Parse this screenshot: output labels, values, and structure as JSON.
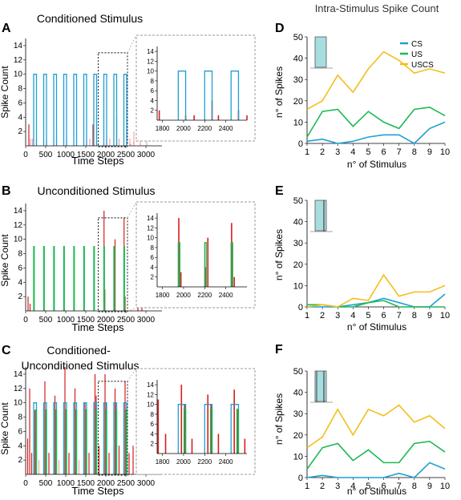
{
  "colors": {
    "cs": "#1fa0d2",
    "us": "#1db954",
    "uscs": "#f4be1a",
    "spike_dark": "#d61e1e",
    "spike_light": "#f4a6a6",
    "cs_shade": "#a8dde0",
    "axis": "#000000",
    "inset_border": "#9a9a9a"
  },
  "right_title": "Intra-Stimulus Spike Count",
  "chart_data": [
    {
      "id": "A",
      "panel_letter": "A",
      "type": "bar",
      "title": "Conditioned Stimulus",
      "xlabel": "Time Steps",
      "ylabel": "Spike Count",
      "xlim": [
        0,
        3400
      ],
      "ylim": [
        0,
        15
      ],
      "xticks": [
        0,
        500,
        1000,
        1500,
        2000,
        2500,
        3000
      ],
      "yticks": [
        2,
        4,
        6,
        8,
        10,
        12,
        14
      ],
      "stimulus_onsets": [
        200,
        450,
        700,
        950,
        1200,
        1450,
        1700,
        1950,
        2200,
        2450
      ],
      "stimulus_duration": 70,
      "cs_level": 10,
      "us_level": null,
      "spikes": [
        [
          80,
          3
        ],
        [
          120,
          1
        ],
        [
          170,
          1
        ],
        [
          270,
          1
        ],
        [
          520,
          1
        ],
        [
          770,
          2
        ],
        [
          1020,
          1
        ],
        [
          1270,
          2
        ],
        [
          1520,
          1
        ],
        [
          1600,
          1
        ],
        [
          1680,
          3
        ],
        [
          1770,
          2
        ],
        [
          2020,
          1
        ],
        [
          2100,
          1
        ],
        [
          2270,
          4
        ],
        [
          2330,
          1
        ],
        [
          2520,
          2
        ],
        [
          2600,
          1
        ],
        [
          2700,
          2
        ],
        [
          2860,
          1
        ],
        [
          3020,
          1
        ]
      ],
      "inset": {
        "xlim": [
          1750,
          2600
        ],
        "ylim": [
          0,
          15
        ],
        "xticks": [
          1800,
          2000,
          2200,
          2400
        ],
        "yticks": [
          2,
          4,
          6,
          8,
          10,
          12,
          14
        ]
      }
    },
    {
      "id": "B",
      "panel_letter": "B",
      "type": "bar",
      "title": "Unconditioned Stimulus",
      "xlabel": "Time Steps",
      "ylabel": "Spike Count",
      "xlim": [
        0,
        3400
      ],
      "ylim": [
        0,
        15
      ],
      "xticks": [
        0,
        500,
        1000,
        1500,
        2000,
        2500,
        3000
      ],
      "yticks": [
        2,
        4,
        6,
        8,
        10,
        12,
        14
      ],
      "stimulus_onsets": [
        200,
        450,
        700,
        950,
        1200,
        1450,
        1700,
        1950,
        2200,
        2450
      ],
      "stimulus_duration": 15,
      "cs_level": null,
      "us_level": 9,
      "spikes": [
        [
          60,
          2
        ],
        [
          110,
          1
        ],
        [
          205,
          9
        ],
        [
          455,
          3
        ],
        [
          705,
          4
        ],
        [
          955,
          5
        ],
        [
          1205,
          6
        ],
        [
          1455,
          5
        ],
        [
          1705,
          8
        ],
        [
          1955,
          14
        ],
        [
          1975,
          3
        ],
        [
          2205,
          4
        ],
        [
          2230,
          10
        ],
        [
          2455,
          13
        ],
        [
          2480,
          2
        ],
        [
          2800,
          2
        ],
        [
          2900,
          1
        ]
      ],
      "inset": {
        "xlim": [
          1750,
          2600
        ],
        "ylim": [
          0,
          15
        ],
        "xticks": [
          1800,
          2000,
          2200,
          2400
        ],
        "yticks": [
          2,
          4,
          6,
          8,
          10,
          12,
          14
        ]
      }
    },
    {
      "id": "C",
      "panel_letter": "C",
      "type": "bar",
      "title": "Conditioned-Unconditioned Stimulus",
      "xlabel": "Time Steps",
      "ylabel": "Spike Count",
      "xlim": [
        0,
        3400
      ],
      "ylim": [
        0,
        15
      ],
      "xticks": [
        0,
        500,
        1000,
        1500,
        2000,
        2500,
        3000
      ],
      "yticks": [
        2,
        4,
        6,
        8,
        10,
        12,
        14
      ],
      "stimulus_onsets": [
        200,
        450,
        700,
        950,
        1200,
        1450,
        1700,
        1950,
        2200,
        2450
      ],
      "stimulus_duration": 70,
      "cs_level": 10,
      "us_level": 9,
      "spikes": [
        [
          50,
          5
        ],
        [
          100,
          12
        ],
        [
          150,
          3
        ],
        [
          230,
          9
        ],
        [
          260,
          6
        ],
        [
          330,
          2
        ],
        [
          480,
          13
        ],
        [
          510,
          7
        ],
        [
          580,
          3
        ],
        [
          730,
          11
        ],
        [
          760,
          8
        ],
        [
          830,
          2
        ],
        [
          980,
          15
        ],
        [
          1010,
          8
        ],
        [
          1080,
          3
        ],
        [
          1230,
          12
        ],
        [
          1260,
          9
        ],
        [
          1330,
          2
        ],
        [
          1480,
          10
        ],
        [
          1510,
          7
        ],
        [
          1580,
          3
        ],
        [
          1730,
          14
        ],
        [
          1760,
          11
        ],
        [
          1830,
          4
        ],
        [
          1980,
          14
        ],
        [
          2010,
          10
        ],
        [
          2080,
          3
        ],
        [
          2230,
          12
        ],
        [
          2260,
          10
        ],
        [
          2330,
          4
        ],
        [
          2480,
          13
        ],
        [
          2510,
          9
        ],
        [
          2580,
          3
        ],
        [
          2680,
          4
        ],
        [
          2780,
          3
        ],
        [
          2880,
          2
        ],
        [
          3000,
          2
        ],
        [
          3150,
          1
        ]
      ],
      "inset": {
        "xlim": [
          1750,
          2600
        ],
        "ylim": [
          0,
          15
        ],
        "xticks": [
          1800,
          2000,
          2200,
          2400
        ],
        "yticks": [
          2,
          4,
          6,
          8,
          10,
          12,
          14
        ]
      }
    },
    {
      "id": "D",
      "panel_letter": "D",
      "type": "line",
      "xlabel": "n° of Stimulus",
      "ylabel": "n° of Spikes",
      "x": [
        1,
        2,
        3,
        4,
        5,
        6,
        7,
        8,
        9,
        10
      ],
      "xlim": [
        1,
        10
      ],
      "ylim": [
        0,
        50
      ],
      "yticks": [
        0,
        10,
        20,
        30,
        40,
        50
      ],
      "legend": {
        "position": "top-right",
        "entries": [
          "CS",
          "US",
          "USCS"
        ]
      },
      "glyph": "cs",
      "series": [
        {
          "name": "CS",
          "color_key": "cs",
          "values": [
            1,
            2,
            0,
            1,
            3,
            4,
            4,
            0,
            7,
            10
          ]
        },
        {
          "name": "US",
          "color_key": "us",
          "values": [
            3,
            15,
            16,
            8,
            15,
            10,
            7,
            16,
            17,
            13
          ]
        },
        {
          "name": "USCS",
          "color_key": "uscs",
          "values": [
            16,
            20,
            32,
            24,
            35,
            43,
            39,
            33,
            35,
            33
          ]
        }
      ]
    },
    {
      "id": "E",
      "panel_letter": "E",
      "type": "line",
      "xlabel": "n° of Stimulus",
      "ylabel": "n° of Spikes",
      "x": [
        1,
        2,
        3,
        4,
        5,
        6,
        7,
        8,
        9,
        10
      ],
      "xlim": [
        1,
        10
      ],
      "ylim": [
        0,
        50
      ],
      "yticks": [
        0,
        10,
        20,
        30,
        40,
        50
      ],
      "glyph": "us",
      "series": [
        {
          "name": "CS",
          "color_key": "cs",
          "values": [
            0,
            0,
            0,
            1,
            2,
            4,
            2,
            0,
            0,
            6
          ]
        },
        {
          "name": "US",
          "color_key": "us",
          "values": [
            1,
            1,
            0,
            0,
            2,
            3,
            0,
            0,
            0,
            0
          ]
        },
        {
          "name": "USCS",
          "color_key": "uscs",
          "values": [
            0,
            1,
            0,
            4,
            3,
            15,
            5,
            7,
            7,
            10
          ]
        }
      ]
    },
    {
      "id": "F",
      "panel_letter": "F",
      "type": "line",
      "xlabel": "n° of Stimulus",
      "ylabel": "n° of Spikes",
      "x": [
        1,
        2,
        3,
        4,
        5,
        6,
        7,
        8,
        9,
        10
      ],
      "xlim": [
        1,
        10
      ],
      "ylim": [
        0,
        50
      ],
      "yticks": [
        0,
        10,
        20,
        30,
        40,
        50
      ],
      "glyph": "uscs",
      "series": [
        {
          "name": "CS",
          "color_key": "cs",
          "values": [
            0,
            1,
            0,
            0,
            0,
            0,
            2,
            0,
            7,
            4
          ]
        },
        {
          "name": "US",
          "color_key": "us",
          "values": [
            4,
            14,
            16,
            8,
            13,
            7,
            7,
            16,
            17,
            12
          ]
        },
        {
          "name": "USCS",
          "color_key": "uscs",
          "values": [
            14,
            19,
            32,
            20,
            32,
            29,
            34,
            26,
            29,
            23
          ]
        }
      ]
    }
  ]
}
